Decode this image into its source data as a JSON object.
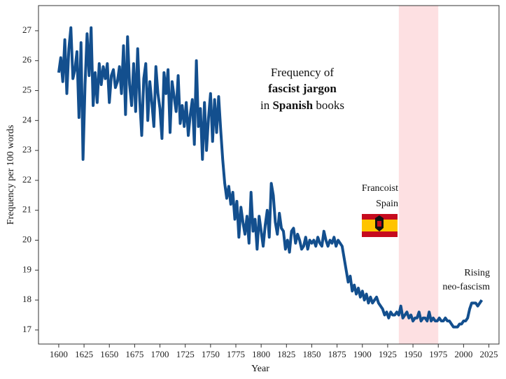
{
  "chart_data": {
    "type": "line",
    "title_lines": [
      [
        {
          "text": "Frequency of",
          "bold": false
        }
      ],
      [
        {
          "text": "fascist jargon",
          "bold": true
        }
      ],
      [
        {
          "text": "in ",
          "bold": false
        },
        {
          "text": "Spanish",
          "bold": true
        },
        {
          "text": " books",
          "bold": false
        }
      ]
    ],
    "x_label": "Year",
    "y_label": "Frequency per 100 words",
    "xlim": [
      1580,
      2035
    ],
    "ylim": [
      16.53,
      27.84
    ],
    "xticks": [
      1600,
      1625,
      1650,
      1675,
      1700,
      1725,
      1750,
      1775,
      1800,
      1825,
      1850,
      1875,
      1900,
      1925,
      1950,
      1975,
      2000,
      2025
    ],
    "yticks": [
      17,
      18,
      19,
      20,
      21,
      22,
      23,
      24,
      25,
      26,
      27
    ],
    "span": {
      "xlim": [
        1936,
        1975
      ],
      "color": "#fde0e2"
    },
    "annotations": [
      {
        "lines": [
          "Francoist",
          "Spain"
        ]
      },
      {
        "lines": [
          "Rising",
          "neo-fascism"
        ]
      }
    ],
    "x": [
      1600,
      1602,
      1604,
      1606,
      1608,
      1610,
      1612,
      1614,
      1616,
      1618,
      1620,
      1622,
      1624,
      1626,
      1628,
      1630,
      1632,
      1634,
      1636,
      1638,
      1640,
      1642,
      1644,
      1646,
      1648,
      1650,
      1652,
      1654,
      1656,
      1658,
      1660,
      1662,
      1664,
      1666,
      1668,
      1670,
      1672,
      1674,
      1676,
      1678,
      1680,
      1682,
      1684,
      1686,
      1688,
      1690,
      1692,
      1694,
      1696,
      1698,
      1700,
      1702,
      1704,
      1706,
      1708,
      1710,
      1712,
      1714,
      1716,
      1718,
      1720,
      1722,
      1724,
      1726,
      1728,
      1730,
      1732,
      1734,
      1736,
      1738,
      1740,
      1742,
      1744,
      1746,
      1748,
      1750,
      1752,
      1754,
      1756,
      1758,
      1760,
      1762,
      1764,
      1766,
      1768,
      1770,
      1772,
      1774,
      1776,
      1778,
      1780,
      1782,
      1784,
      1786,
      1788,
      1790,
      1792,
      1794,
      1796,
      1798,
      1800,
      1802,
      1804,
      1806,
      1808,
      1810,
      1812,
      1814,
      1816,
      1818,
      1820,
      1822,
      1824,
      1826,
      1828,
      1830,
      1832,
      1834,
      1836,
      1838,
      1840,
      1842,
      1844,
      1846,
      1848,
      1850,
      1852,
      1854,
      1856,
      1858,
      1860,
      1862,
      1864,
      1866,
      1868,
      1870,
      1872,
      1874,
      1876,
      1878,
      1880,
      1882,
      1884,
      1886,
      1888,
      1890,
      1892,
      1894,
      1896,
      1898,
      1900,
      1902,
      1904,
      1906,
      1908,
      1910,
      1912,
      1914,
      1916,
      1918,
      1920,
      1922,
      1924,
      1926,
      1928,
      1930,
      1932,
      1934,
      1936,
      1938,
      1940,
      1942,
      1944,
      1946,
      1948,
      1950,
      1952,
      1954,
      1956,
      1958,
      1960,
      1962,
      1964,
      1966,
      1968,
      1970,
      1972,
      1974,
      1976,
      1978,
      1980,
      1982,
      1984,
      1986,
      1988,
      1990,
      1992,
      1994,
      1996,
      1998,
      2000,
      2002,
      2004,
      2006,
      2008,
      2010,
      2012,
      2014,
      2016,
      2018
    ],
    "series": [
      {
        "color": "#134f8e",
        "values": [
          25.6,
          26.1,
          25.3,
          26.7,
          24.9,
          26.4,
          27.1,
          25.4,
          25.7,
          26.3,
          24.1,
          26.6,
          22.7,
          25.2,
          26.9,
          25.5,
          27.1,
          24.5,
          25.6,
          24.6,
          25.9,
          25.2,
          25.8,
          25.4,
          25.9,
          24.6,
          25.5,
          25.7,
          25.1,
          25.3,
          25.8,
          24.9,
          26.5,
          24.2,
          26.8,
          25.2,
          24.5,
          25.9,
          24.3,
          26.4,
          24.7,
          23.5,
          25.4,
          25.9,
          24.0,
          25.3,
          24.6,
          23.8,
          25.8,
          24.9,
          24.4,
          23.4,
          25.6,
          24.9,
          25.7,
          23.6,
          25.3,
          24.8,
          24.3,
          25.5,
          23.9,
          24.5,
          23.8,
          24.6,
          23.5,
          24.2,
          24.7,
          23.2,
          26.0,
          23.8,
          24.4,
          22.7,
          24.6,
          23.0,
          24.1,
          24.9,
          23.3,
          24.7,
          23.6,
          24.8,
          23.7,
          22.7,
          21.9,
          21.4,
          21.8,
          21.2,
          21.6,
          20.7,
          21.3,
          20.1,
          21.1,
          20.6,
          20.2,
          20.8,
          19.9,
          21.6,
          20.3,
          20.7,
          19.7,
          20.8,
          20.3,
          19.8,
          20.5,
          21.0,
          20.1,
          21.9,
          21.5,
          20.6,
          20.2,
          20.9,
          20.4,
          20.3,
          19.7,
          20.0,
          19.6,
          20.3,
          20.4,
          19.9,
          20.2,
          20.0,
          19.7,
          19.8,
          20.1,
          19.7,
          20.0,
          19.9,
          20.0,
          19.8,
          20.1,
          19.9,
          19.8,
          20.3,
          20.0,
          19.8,
          20.0,
          19.9,
          20.1,
          19.8,
          20.0,
          19.9,
          19.8,
          19.4,
          19.0,
          18.6,
          18.8,
          18.3,
          18.5,
          18.2,
          18.4,
          18.1,
          18.3,
          18.0,
          18.2,
          17.9,
          18.1,
          17.9,
          18.0,
          18.1,
          17.9,
          17.8,
          17.7,
          17.5,
          17.6,
          17.4,
          17.6,
          17.5,
          17.5,
          17.6,
          17.5,
          17.8,
          17.4,
          17.5,
          17.6,
          17.4,
          17.5,
          17.3,
          17.4,
          17.4,
          17.6,
          17.3,
          17.4,
          17.4,
          17.3,
          17.6,
          17.3,
          17.4,
          17.3,
          17.3,
          17.4,
          17.3,
          17.3,
          17.4,
          17.3,
          17.3,
          17.2,
          17.1,
          17.1,
          17.1,
          17.2,
          17.2,
          17.3,
          17.3,
          17.4,
          17.7,
          17.9,
          17.9,
          17.9,
          17.8,
          17.9,
          18.0
        ]
      }
    ]
  }
}
